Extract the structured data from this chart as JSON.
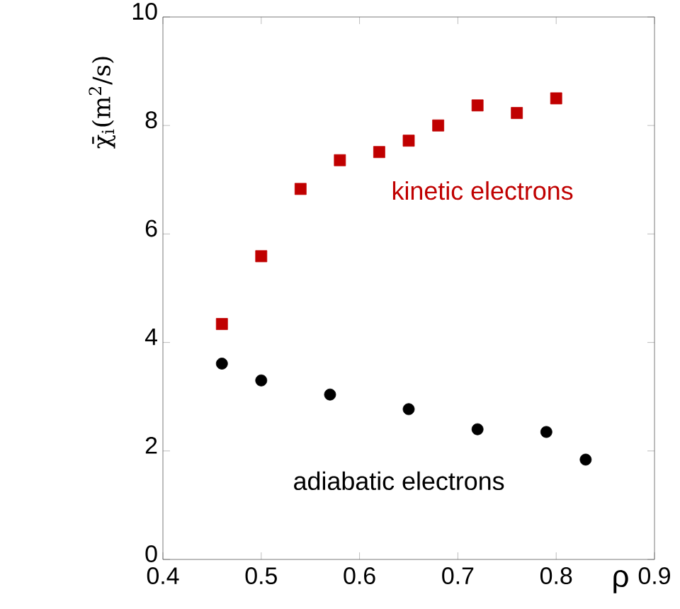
{
  "chart_data": {
    "type": "scatter",
    "xlabel": "ρ",
    "ylabel": "χ̄$_{i}$(m$^{2}$/s)",
    "xlim": [
      0.4,
      0.9
    ],
    "ylim": [
      0,
      10
    ],
    "xticks": [
      0.4,
      0.5,
      0.6,
      0.7,
      0.8,
      0.9
    ],
    "yticks": [
      0,
      2,
      4,
      6,
      8,
      10
    ],
    "grid": false,
    "legend": false,
    "series": [
      {
        "name": "kinetic electrons",
        "color": "#c00000",
        "marker": "square",
        "x": [
          0.46,
          0.5,
          0.54,
          0.58,
          0.62,
          0.65,
          0.68,
          0.72,
          0.76,
          0.8
        ],
        "values": [
          4.34,
          5.59,
          6.83,
          7.36,
          7.51,
          7.72,
          8.0,
          8.37,
          8.23,
          8.5
        ]
      },
      {
        "name": "adiabatic electrons",
        "color": "#000000",
        "marker": "circle",
        "x": [
          0.46,
          0.5,
          0.57,
          0.65,
          0.72,
          0.79,
          0.83
        ],
        "values": [
          3.61,
          3.3,
          3.04,
          2.77,
          2.4,
          2.35,
          1.84
        ]
      }
    ]
  }
}
